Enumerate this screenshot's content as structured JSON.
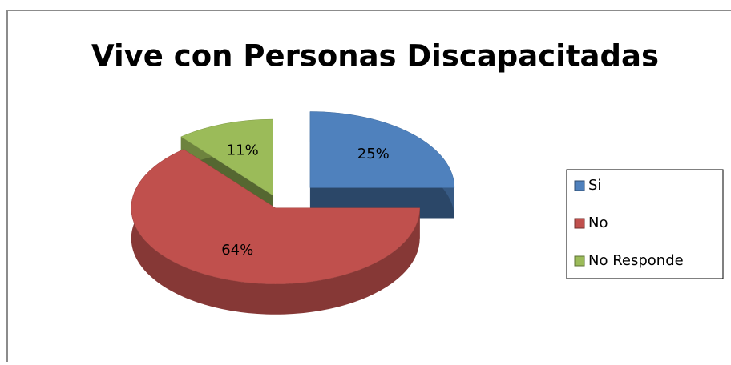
{
  "chart_data": {
    "type": "pie",
    "title": "Vive con Personas Discapacitadas",
    "categories": [
      "Si",
      "No",
      "No Responde"
    ],
    "values": [
      25,
      64,
      11
    ],
    "value_labels": [
      "25%",
      "64%",
      "11%"
    ],
    "colors": [
      "#4f81bd",
      "#c0504d",
      "#9bbb59"
    ],
    "legend": "right"
  }
}
